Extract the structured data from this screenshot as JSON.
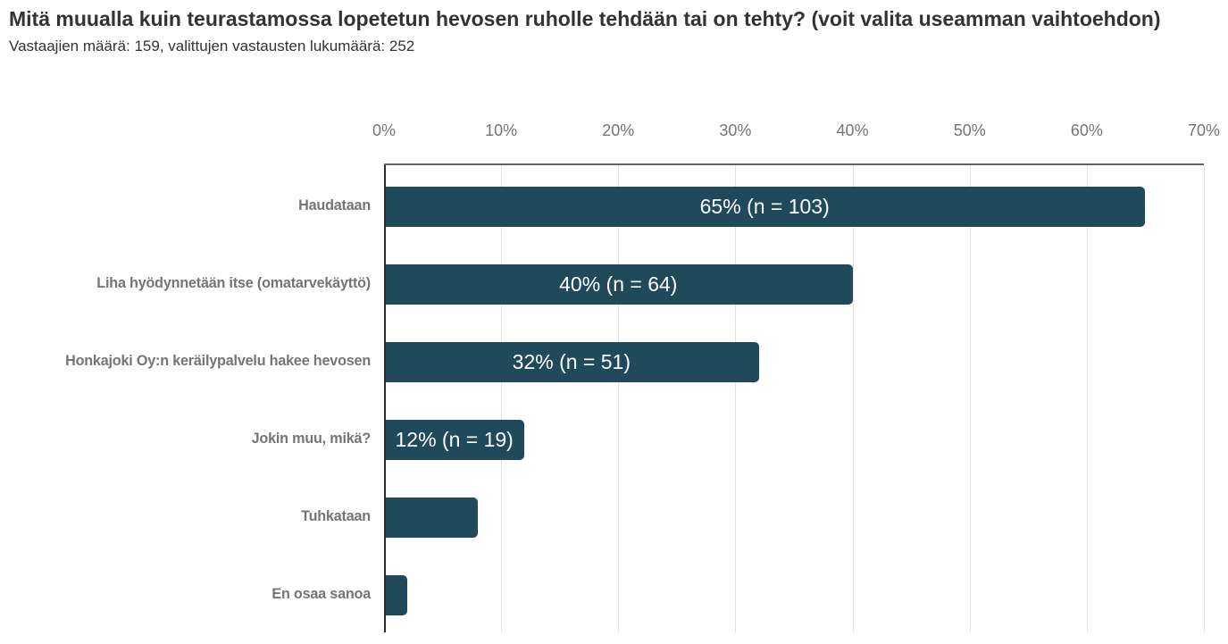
{
  "header": {
    "title": "Mitä muualla kuin teurastamossa lopetetun hevosen ruholle tehdään tai on tehty? (voit valita useamman vaihtoehdon)",
    "subtitle": "Vastaajien määrä: 159, valittujen vastausten lukumäärä: 252",
    "respondents": 159,
    "selected_answers": 252
  },
  "chart_data": {
    "type": "bar",
    "orientation": "horizontal",
    "title": "Mitä muualla kuin teurastamossa lopetetun hevosen ruholle tehdään tai on tehty? (voit valita useamman vaihtoehdon)",
    "subtitle": "Vastaajien määrä: 159, valittujen vastausten lukumäärä: 252",
    "categories": [
      "Haudataan",
      "Liha hyödynnetään itse (omatarvekäyttö)",
      "Honkajoki Oy:n keräilypalvelu hakee hevosen",
      "Jokin muu, mikä?",
      "Tuhkataan",
      "En osaa sanoa"
    ],
    "values": [
      65,
      40,
      32,
      12,
      8,
      2
    ],
    "bar_labels": [
      "65% (n = 103)",
      "40% (n = 64)",
      "32% (n = 51)",
      "12% (n = 19)",
      "",
      ""
    ],
    "x_ticks": [
      "0%",
      "10%",
      "20%",
      "30%",
      "40%",
      "50%",
      "60%",
      "70%"
    ],
    "xlim": [
      0,
      70
    ],
    "grid": true,
    "legend": "none",
    "axis_labels_position": "top"
  },
  "colors": {
    "background": "#ffffff",
    "title": "#333333",
    "subtitle": "#333333",
    "category_label": "#757575",
    "tick_label": "#757575",
    "bar": "#204A5C",
    "bar_value": "#ffffff",
    "axis_top": "#666666",
    "axis_left": "#2b2b2b",
    "gridline": "#e3e3e3"
  }
}
